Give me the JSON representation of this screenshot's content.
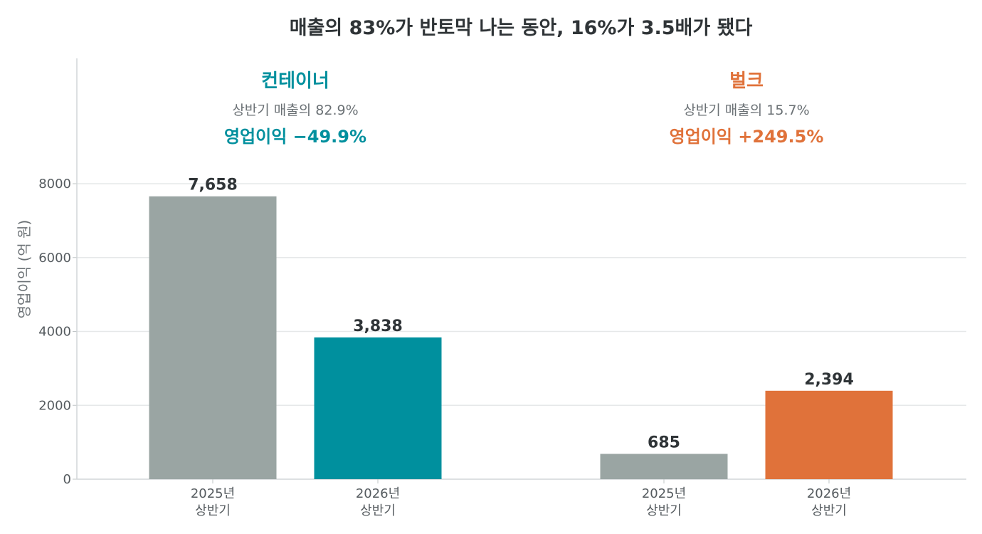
{
  "chart_data": {
    "type": "bar",
    "title": "매출의 83%가 반토막 나는 동안, 16%가 3.5배가 됐다",
    "ylabel": "영업이익 (억 원)",
    "ylim": [
      0,
      8000
    ],
    "yticks": [
      "0",
      "2000",
      "4000",
      "6000",
      "8000"
    ],
    "grid": true,
    "groups": [
      {
        "name": "컨테이너",
        "color": "#00909e",
        "revenue_share": "상반기 매출의 82.9%",
        "change": "영업이익 −49.9%",
        "bars": [
          {
            "category": [
              "2025년",
              "상반기"
            ],
            "value": 7658,
            "label": "7,658",
            "color": "#9aa5a3"
          },
          {
            "category": [
              "2026년",
              "상반기"
            ],
            "value": 3838,
            "label": "3,838",
            "color": "#00909e"
          }
        ]
      },
      {
        "name": "벌크",
        "color": "#e0723a",
        "revenue_share": "상반기 매출의 15.7%",
        "change": "영업이익 +249.5%",
        "bars": [
          {
            "category": [
              "2025년",
              "상반기"
            ],
            "value": 685,
            "label": "685",
            "color": "#9aa5a3"
          },
          {
            "category": [
              "2026년",
              "상반기"
            ],
            "value": 2394,
            "label": "2,394",
            "color": "#e0723a"
          }
        ]
      }
    ]
  }
}
